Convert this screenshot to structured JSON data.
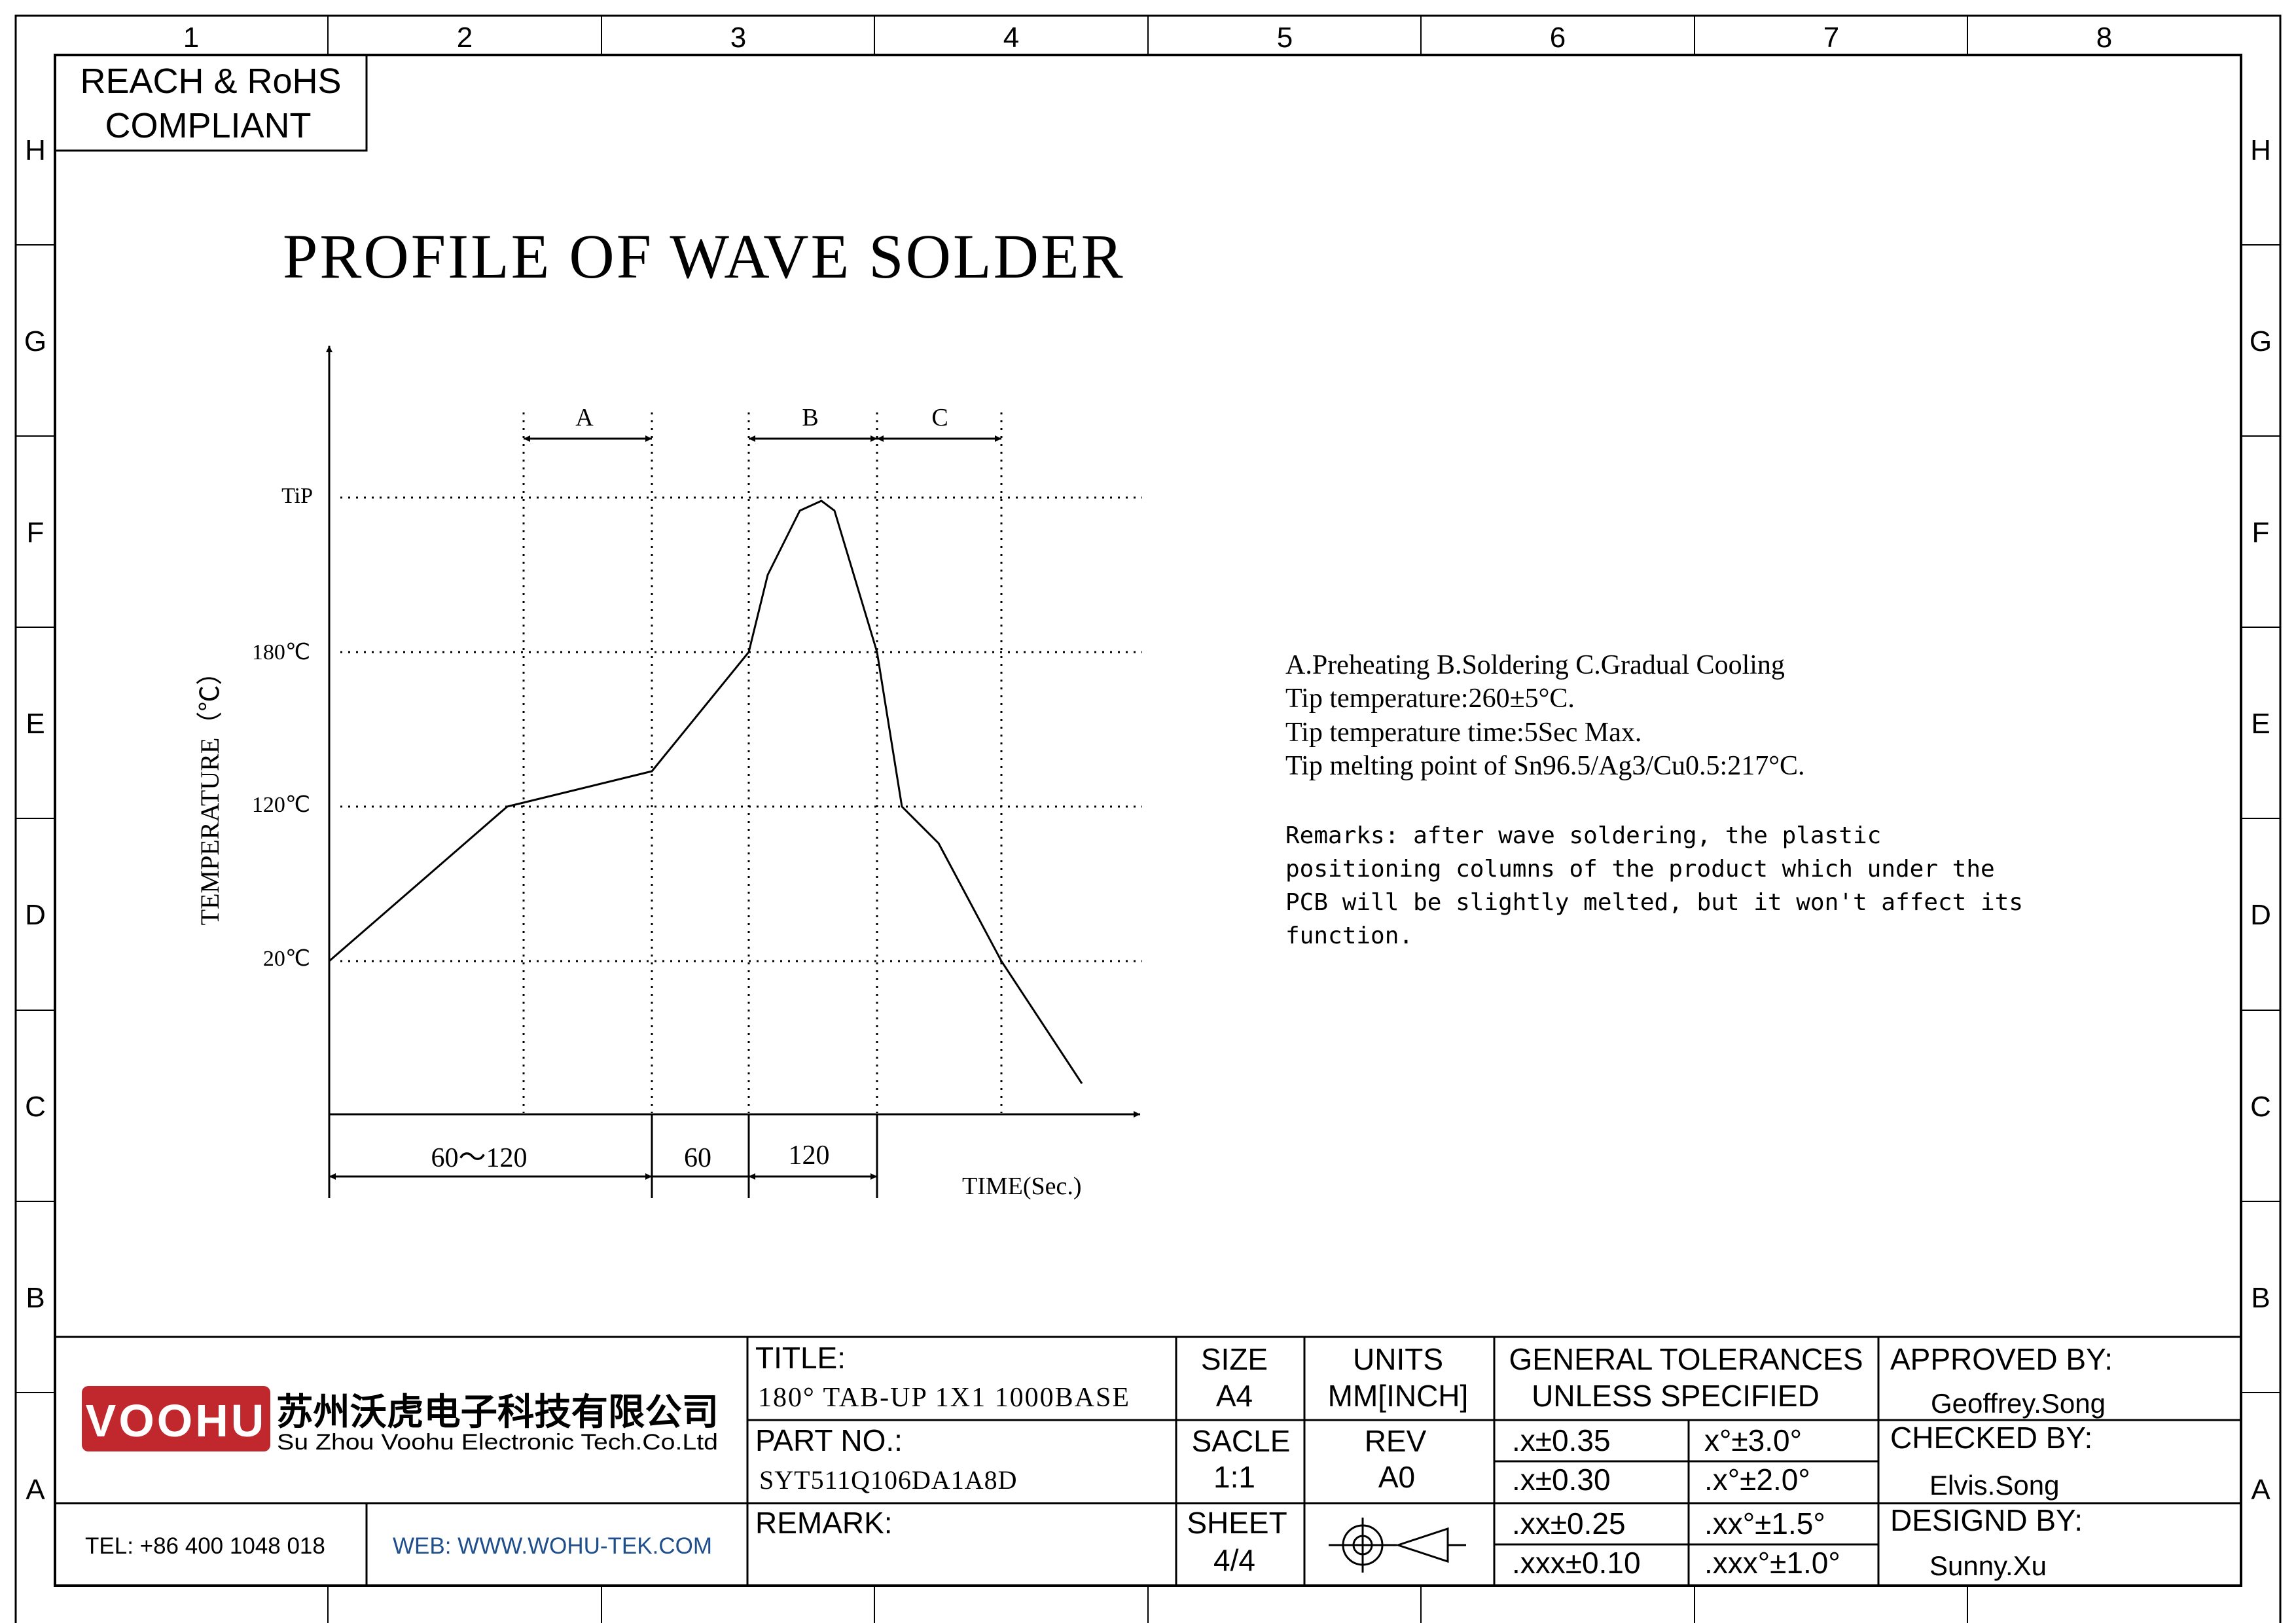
{
  "frame": {
    "columns": [
      "1",
      "2",
      "3",
      "4",
      "5",
      "6",
      "7",
      "8"
    ],
    "rows": [
      "H",
      "G",
      "F",
      "E",
      "D",
      "C",
      "B",
      "A"
    ]
  },
  "compliance": {
    "line1": "REACH & RoHS",
    "line2": "COMPLIANT"
  },
  "drawing_title": "PROFILE OF WAVE SOLDER",
  "chart": {
    "y_axis_label": "TEMPERATURE（℃）",
    "x_axis_label": "TIME(Sec.)",
    "y_ticks": [
      "TiP",
      "180℃",
      "120℃",
      "20℃"
    ],
    "zones": [
      "A",
      "B",
      "C"
    ],
    "durations": [
      "60～120",
      "60",
      "120"
    ]
  },
  "chart_data": {
    "type": "line",
    "title": "PROFILE OF WAVE SOLDER",
    "xlabel": "TIME(Sec.)",
    "ylabel": "TEMPERATURE（℃）",
    "y_tick_labels": [
      "20℃",
      "120℃",
      "180℃",
      "TiP"
    ],
    "series": [
      {
        "x": [
          0,
          65,
          100,
          130,
          142,
          153,
          160,
          165,
          180,
          186,
          200,
          215,
          240
        ],
        "y": [
          20,
          120,
          137,
          180,
          230,
          255,
          260,
          255,
          180,
          120,
          75,
          20,
          -55
        ]
      }
    ],
    "ylim": [
      -100,
      360
    ],
    "xlim": [
      0,
      290
    ],
    "zones": [
      {
        "name": "A",
        "from": 60,
        "to": 120
      },
      {
        "name": "B",
        "from": 130,
        "to": 180
      },
      {
        "name": "C",
        "from": 180,
        "to": 220
      }
    ],
    "grid": false
  },
  "notes": {
    "line1": "A.Preheating  B.Soldering  C.Gradual Cooling",
    "line2": "Tip temperature:260±5°C.",
    "line3": "Tip temperature time:5Sec Max.",
    "line4": "Tip melting point of Sn96.5/Ag3/Cu0.5:217°C.",
    "remark1": "Remarks: after wave soldering, the plastic",
    "remark2": "positioning columns of the product  which under the",
    "remark3": "PCB will be slightly melted, but it won't affect its",
    "remark4": "function."
  },
  "title_block": {
    "logo_text": "VOOHU",
    "company_cn": "苏州沃虎电子科技有限公司",
    "company_en": "Su Zhou Voohu Electronic Tech.Co.Ltd",
    "tel": "TEL: +86 400 1048 018",
    "web": "WEB: WWW.WOHU-TEK.COM",
    "title_label": "TITLE:",
    "title_value": "180° TAB-UP 1X1 1000BASE",
    "part_label": "PART NO.:",
    "part_value": "SYT511Q106DA1A8D",
    "remark_label": "REMARK:",
    "size_label": "SIZE",
    "size_value": "A4",
    "units_label": "UNITS",
    "units_value": "MM[INCH]",
    "scale_label": "SACLE",
    "scale_value": "1:1",
    "rev_label": "REV",
    "rev_value": "A0",
    "sheet_label": "SHEET",
    "sheet_value": "4/4",
    "tol_title1": "GENERAL TOLERANCES",
    "tol_title2": "UNLESS SPECIFIED",
    "tol": [
      [
        ".x±0.35",
        "x°±3.0°"
      ],
      [
        ".x±0.30",
        ".x°±2.0°"
      ],
      [
        ".xx±0.25",
        ".xx°±1.5°"
      ],
      [
        ".xxx±0.10",
        ".xxx°±1.0°"
      ]
    ],
    "approved_label": "APPROVED BY:",
    "approved_value": "Geoffrey.Song",
    "checked_label": "CHECKED BY:",
    "checked_value": "Elvis.Song",
    "designed_label": "DESIGND BY:",
    "designed_value": "Sunny.Xu",
    "logo_color": "#c0282d",
    "web_color": "#1f4e8c"
  }
}
